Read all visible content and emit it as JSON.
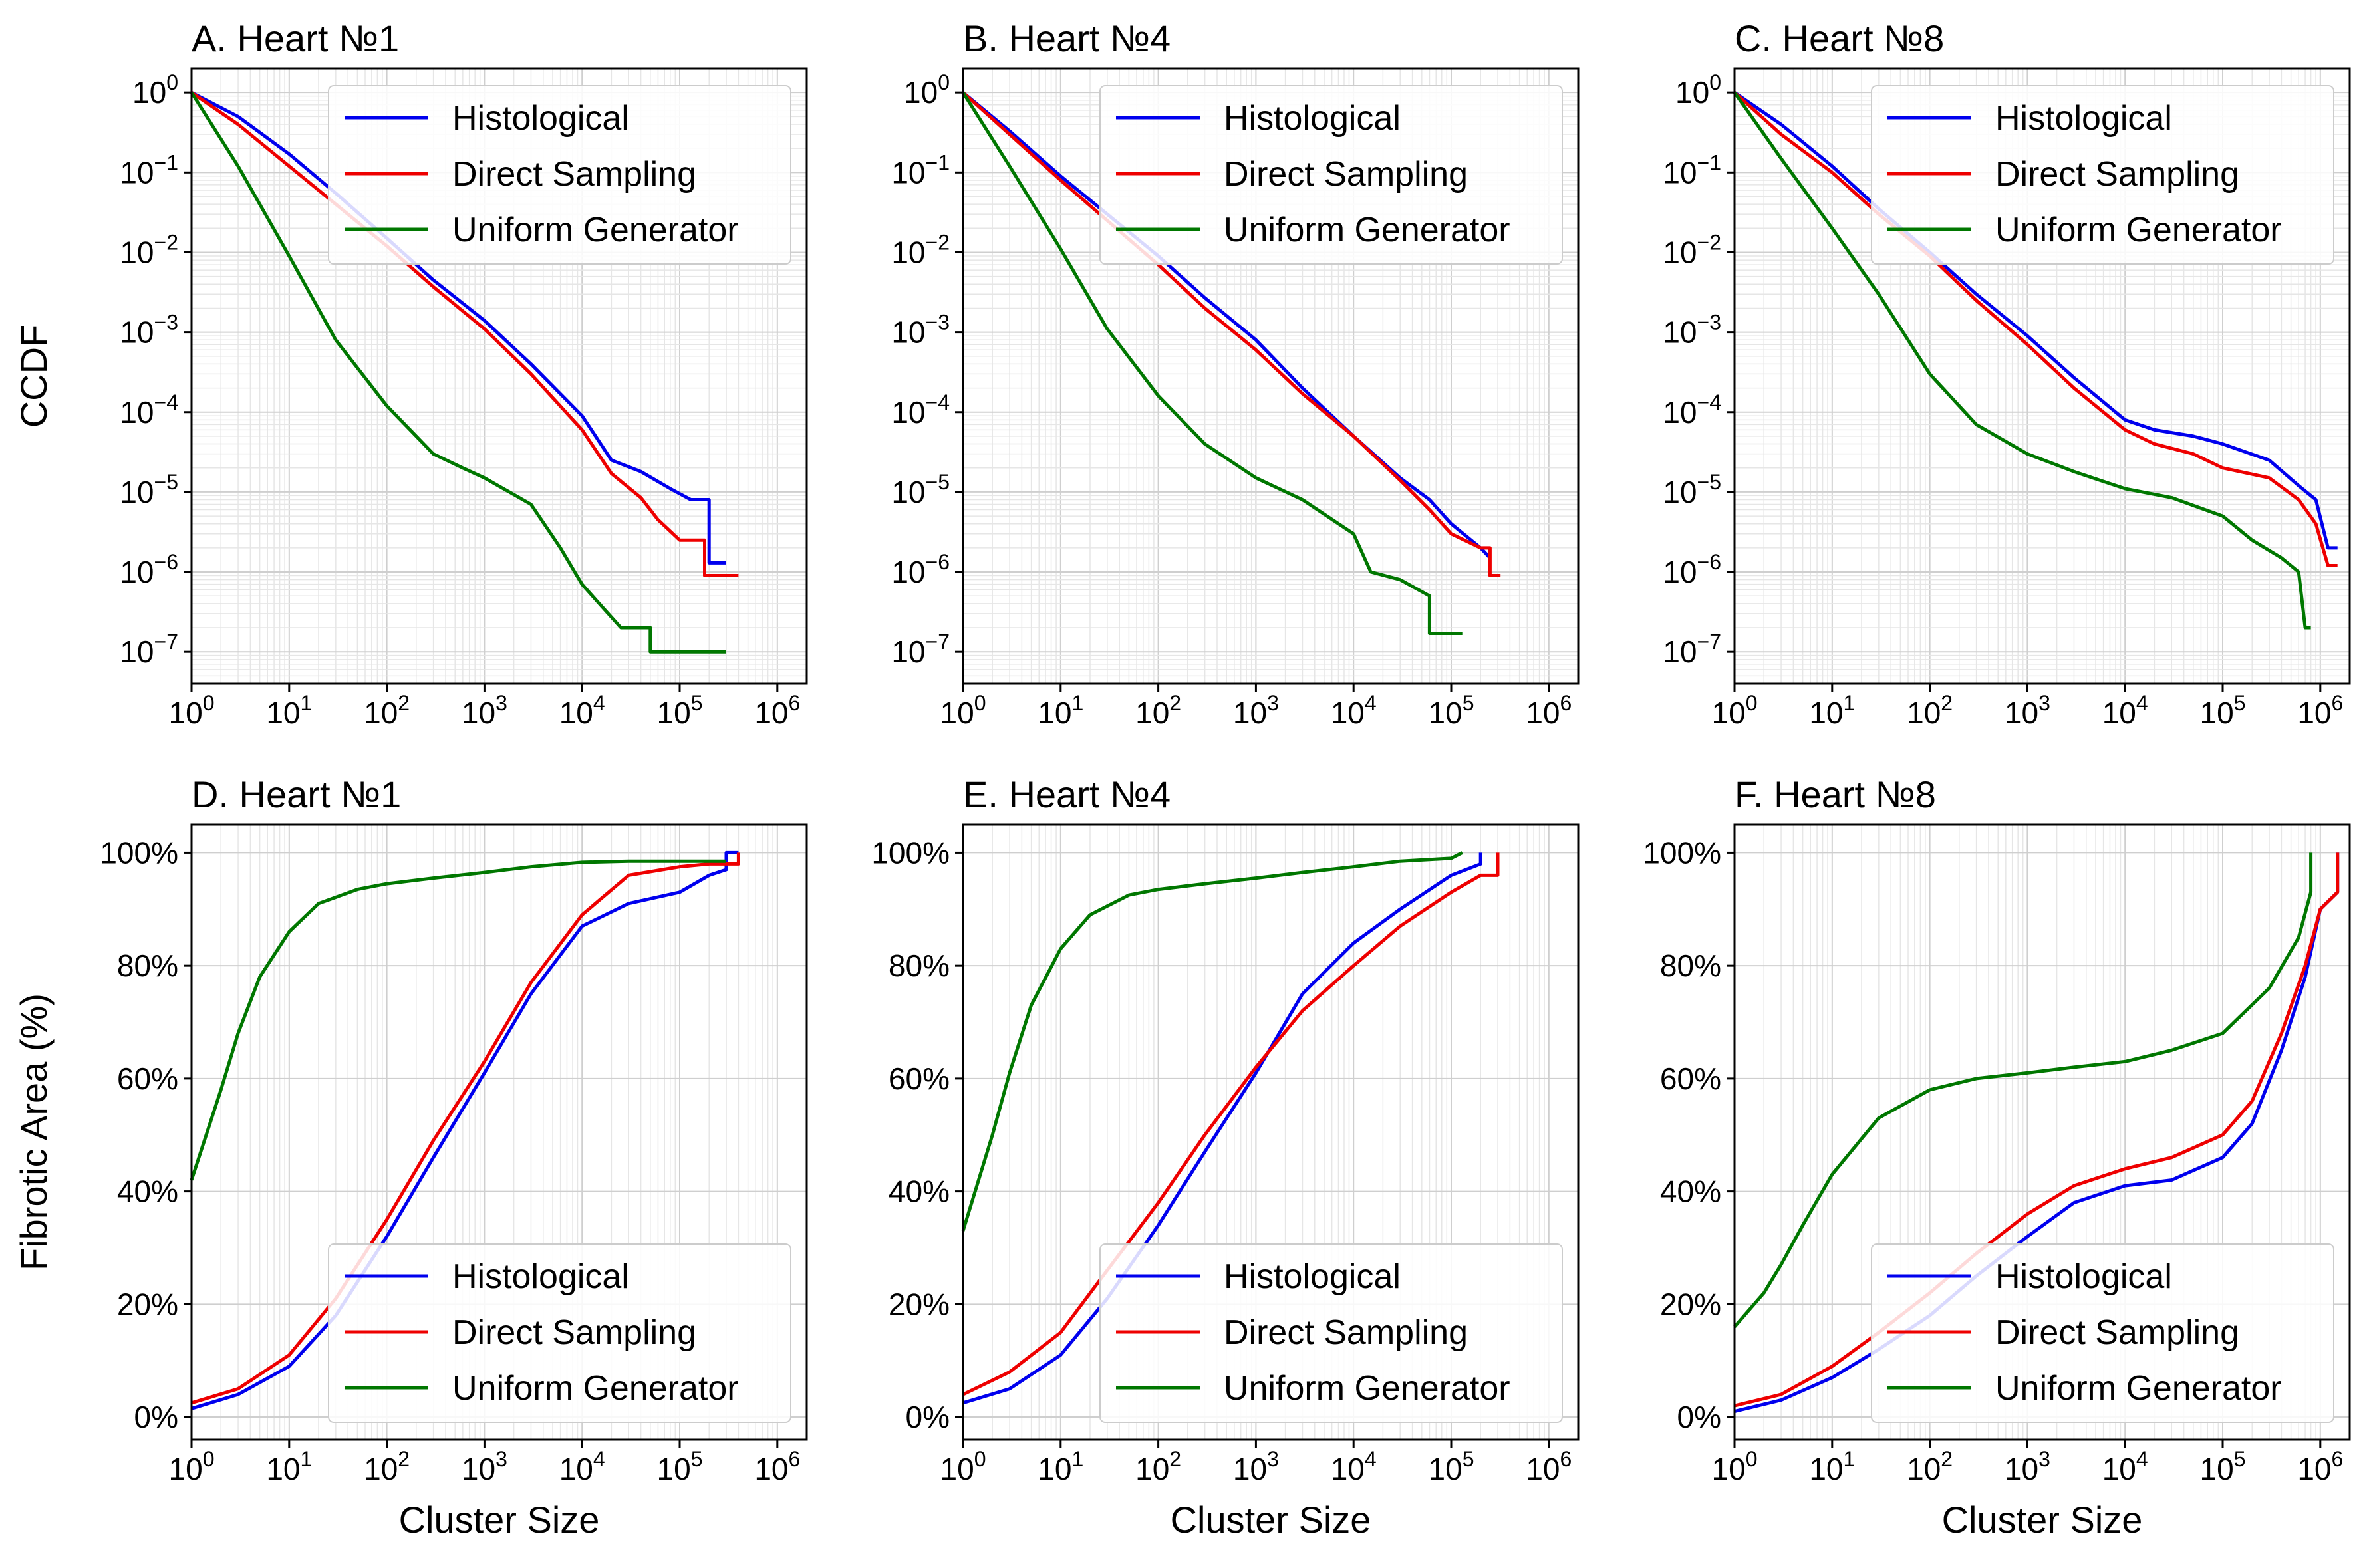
{
  "colors": {
    "Histological": "#0000ee",
    "Direct Sampling": "#ee0000",
    "Uniform Generator": "#007700"
  },
  "chart_data": [
    {
      "type": "line",
      "title": "A. Heart №1",
      "row": "top",
      "col": 0,
      "xlabel": "",
      "ylabel": "CCDF",
      "xscale": "log",
      "yscale": "log",
      "xlim": [
        1,
        2000000
      ],
      "ylim": [
        4e-08,
        2
      ],
      "grid": true,
      "legend": "top-right",
      "xticks": [
        1,
        10,
        100,
        1000,
        10000,
        100000,
        1000000
      ],
      "yticks": [
        1,
        0.1,
        0.01,
        0.001,
        0.0001,
        1e-05,
        1e-06,
        1e-07
      ],
      "series": [
        {
          "name": "Histological",
          "x": [
            1,
            3,
            10,
            30,
            100,
            300,
            1000,
            3000,
            10000,
            20000,
            40000,
            80000,
            130000,
            130000,
            200000,
            200000,
            300000
          ],
          "y": [
            1,
            0.5,
            0.17,
            0.055,
            0.015,
            0.0045,
            0.0014,
            0.0004,
            9e-05,
            2.5e-05,
            1.8e-05,
            1.1e-05,
            8e-06,
            8e-06,
            8e-06,
            1.3e-06,
            1.3e-06
          ]
        },
        {
          "name": "Direct Sampling",
          "x": [
            1,
            3,
            10,
            30,
            100,
            300,
            1000,
            3000,
            10000,
            20000,
            40000,
            60000,
            100000,
            100000,
            180000,
            180000,
            400000
          ],
          "y": [
            1,
            0.4,
            0.12,
            0.04,
            0.012,
            0.0037,
            0.0011,
            0.0003,
            6e-05,
            1.7e-05,
            8.5e-06,
            4.5e-06,
            2.5e-06,
            2.5e-06,
            2.5e-06,
            9e-07,
            9e-07
          ]
        },
        {
          "name": "Uniform Generator",
          "x": [
            1,
            3,
            10,
            30,
            100,
            300,
            600,
            1000,
            3000,
            6000,
            10000,
            15000,
            25000,
            50000,
            50000,
            300000
          ],
          "y": [
            1,
            0.12,
            0.009,
            0.0008,
            0.00012,
            3e-05,
            2e-05,
            1.5e-05,
            7e-06,
            2e-06,
            7e-07,
            4e-07,
            2e-07,
            2e-07,
            1e-07,
            1e-07
          ]
        }
      ]
    },
    {
      "type": "line",
      "title": "B. Heart №4",
      "row": "top",
      "col": 1,
      "xlabel": "",
      "ylabel": "",
      "xscale": "log",
      "yscale": "log",
      "xlim": [
        1,
        2000000
      ],
      "ylim": [
        4e-08,
        2
      ],
      "grid": true,
      "legend": "top-right",
      "xticks": [
        1,
        10,
        100,
        1000,
        10000,
        100000,
        1000000
      ],
      "yticks": [
        1,
        0.1,
        0.01,
        0.001,
        0.0001,
        1e-05,
        1e-06,
        1e-07
      ],
      "series": [
        {
          "name": "Histological",
          "x": [
            1,
            3,
            10,
            30,
            100,
            300,
            1000,
            3000,
            10000,
            30000,
            60000,
            100000,
            200000,
            250000
          ],
          "y": [
            1,
            0.33,
            0.09,
            0.03,
            0.009,
            0.0027,
            0.0008,
            0.0002,
            5e-05,
            1.5e-05,
            8e-06,
            4e-06,
            2e-06,
            1.5e-06
          ]
        },
        {
          "name": "Direct Sampling",
          "x": [
            1,
            3,
            10,
            30,
            100,
            300,
            1000,
            3000,
            10000,
            30000,
            60000,
            100000,
            200000,
            250000,
            250000,
            320000
          ],
          "y": [
            1,
            0.3,
            0.08,
            0.025,
            0.007,
            0.002,
            0.0006,
            0.00017,
            5e-05,
            1.4e-05,
            6e-06,
            3e-06,
            2e-06,
            2e-06,
            9e-07,
            9e-07
          ]
        },
        {
          "name": "Uniform Generator",
          "x": [
            1,
            3,
            10,
            30,
            100,
            300,
            1000,
            3000,
            10000,
            15000,
            30000,
            60000,
            60000,
            130000
          ],
          "y": [
            1,
            0.12,
            0.011,
            0.0011,
            0.00016,
            4e-05,
            1.5e-05,
            8e-06,
            3e-06,
            1e-06,
            8e-07,
            5e-07,
            1.7e-07,
            1.7e-07
          ]
        }
      ]
    },
    {
      "type": "line",
      "title": "C. Heart №8",
      "row": "top",
      "col": 2,
      "xlabel": "",
      "ylabel": "",
      "xscale": "log",
      "yscale": "log",
      "xlim": [
        1,
        2000000
      ],
      "ylim": [
        4e-08,
        2
      ],
      "grid": true,
      "legend": "top-right",
      "xticks": [
        1,
        10,
        100,
        1000,
        10000,
        100000,
        1000000
      ],
      "yticks": [
        1,
        0.1,
        0.01,
        0.001,
        0.0001,
        1e-05,
        1e-06,
        1e-07
      ],
      "series": [
        {
          "name": "Histological",
          "x": [
            1,
            3,
            10,
            30,
            100,
            300,
            1000,
            3000,
            10000,
            20000,
            50000,
            100000,
            300000,
            600000,
            900000,
            1200000,
            1500000
          ],
          "y": [
            1,
            0.4,
            0.12,
            0.035,
            0.01,
            0.003,
            0.0009,
            0.00027,
            8e-05,
            6e-05,
            5e-05,
            4e-05,
            2.5e-05,
            1.2e-05,
            8e-06,
            2e-06,
            2e-06
          ]
        },
        {
          "name": "Direct Sampling",
          "x": [
            1,
            3,
            10,
            30,
            100,
            300,
            1000,
            3000,
            10000,
            20000,
            50000,
            100000,
            300000,
            600000,
            900000,
            1200000,
            1500000
          ],
          "y": [
            1,
            0.3,
            0.1,
            0.03,
            0.009,
            0.0025,
            0.0007,
            0.0002,
            6e-05,
            4e-05,
            3e-05,
            2e-05,
            1.5e-05,
            8e-06,
            4e-06,
            1.2e-06,
            1.2e-06
          ]
        },
        {
          "name": "Uniform Generator",
          "x": [
            1,
            3,
            10,
            30,
            100,
            300,
            1000,
            3000,
            10000,
            30000,
            100000,
            200000,
            400000,
            600000,
            700000,
            800000
          ],
          "y": [
            1,
            0.15,
            0.02,
            0.003,
            0.0003,
            7e-05,
            3e-05,
            1.8e-05,
            1.1e-05,
            8.5e-06,
            5e-06,
            2.5e-06,
            1.5e-06,
            1e-06,
            2e-07,
            2e-07
          ]
        }
      ]
    },
    {
      "type": "line",
      "title": "D. Heart №1",
      "row": "bottom",
      "col": 0,
      "xlabel": "Cluster Size",
      "ylabel": "Fibrotic Area (%)",
      "xscale": "log",
      "yscale": "linear",
      "xlim": [
        1,
        2000000
      ],
      "ylim": [
        -4,
        105
      ],
      "grid": true,
      "legend": "lower-right",
      "xticks": [
        1,
        10,
        100,
        1000,
        10000,
        100000,
        1000000
      ],
      "yticks": [
        0,
        20,
        40,
        60,
        80,
        100
      ],
      "series": [
        {
          "name": "Histological",
          "x": [
            1,
            3,
            10,
            30,
            100,
            300,
            1000,
            3000,
            10000,
            30000,
            100000,
            200000,
            300000,
            300000,
            400000
          ],
          "y": [
            1.5,
            4,
            9,
            18,
            32,
            46,
            61,
            75,
            87,
            91,
            93,
            96,
            97,
            100,
            100
          ]
        },
        {
          "name": "Direct Sampling",
          "x": [
            1,
            3,
            10,
            30,
            100,
            300,
            1000,
            3000,
            10000,
            30000,
            100000,
            200000,
            400000,
            400000
          ],
          "y": [
            2.5,
            5,
            11,
            21,
            35,
            49,
            63,
            77,
            89,
            96,
            97.5,
            98,
            98,
            100
          ]
        },
        {
          "name": "Uniform Generator",
          "x": [
            1,
            2,
            3,
            5,
            10,
            20,
            50,
            100,
            300,
            1000,
            3000,
            10000,
            30000,
            100000,
            300000
          ],
          "y": [
            42,
            58,
            68,
            78,
            86,
            91,
            93.5,
            94.5,
            95.5,
            96.5,
            97.5,
            98.3,
            98.5,
            98.5,
            98.5
          ]
        }
      ]
    },
    {
      "type": "line",
      "title": "E. Heart №4",
      "row": "bottom",
      "col": 1,
      "xlabel": "Cluster Size",
      "ylabel": "",
      "xscale": "log",
      "yscale": "linear",
      "xlim": [
        1,
        2000000
      ],
      "ylim": [
        -4,
        105
      ],
      "grid": true,
      "legend": "lower-right",
      "xticks": [
        1,
        10,
        100,
        1000,
        10000,
        100000,
        1000000
      ],
      "yticks": [
        0,
        20,
        40,
        60,
        80,
        100
      ],
      "series": [
        {
          "name": "Histological",
          "x": [
            1,
            3,
            10,
            30,
            100,
            300,
            1000,
            3000,
            10000,
            30000,
            100000,
            200000,
            200000
          ],
          "y": [
            2.5,
            5,
            11,
            21,
            34,
            47,
            61,
            75,
            84,
            90,
            96,
            98,
            100
          ]
        },
        {
          "name": "Direct Sampling",
          "x": [
            1,
            3,
            10,
            30,
            100,
            300,
            1000,
            3000,
            10000,
            30000,
            100000,
            200000,
            300000,
            300000
          ],
          "y": [
            4,
            8,
            15,
            26,
            38,
            50,
            62,
            72,
            80,
            87,
            93,
            96,
            96,
            100
          ]
        },
        {
          "name": "Uniform Generator",
          "x": [
            1,
            2,
            3,
            5,
            10,
            20,
            50,
            100,
            300,
            1000,
            3000,
            10000,
            30000,
            100000,
            130000
          ],
          "y": [
            33,
            50,
            61,
            73,
            83,
            89,
            92.5,
            93.5,
            94.5,
            95.5,
            96.5,
            97.5,
            98.5,
            99,
            100
          ]
        }
      ]
    },
    {
      "type": "line",
      "title": "F. Heart №8",
      "row": "bottom",
      "col": 2,
      "xlabel": "Cluster Size",
      "ylabel": "",
      "xscale": "log",
      "yscale": "linear",
      "xlim": [
        1,
        2000000
      ],
      "ylim": [
        -4,
        105
      ],
      "grid": true,
      "legend": "lower-right",
      "xticks": [
        1,
        10,
        100,
        1000,
        10000,
        100000,
        1000000
      ],
      "yticks": [
        0,
        20,
        40,
        60,
        80,
        100
      ],
      "series": [
        {
          "name": "Histological",
          "x": [
            1,
            3,
            10,
            30,
            100,
            300,
            1000,
            3000,
            10000,
            30000,
            100000,
            200000,
            400000,
            700000,
            1000000,
            1500000,
            1500000
          ],
          "y": [
            1,
            3,
            7,
            12,
            18,
            25,
            32,
            38,
            41,
            42,
            46,
            52,
            65,
            78,
            90,
            93,
            100
          ]
        },
        {
          "name": "Direct Sampling",
          "x": [
            1,
            3,
            10,
            30,
            100,
            300,
            1000,
            3000,
            10000,
            30000,
            100000,
            200000,
            400000,
            700000,
            1000000,
            1500000,
            1500000
          ],
          "y": [
            2,
            4,
            9,
            15,
            22,
            29,
            36,
            41,
            44,
            46,
            50,
            56,
            68,
            80,
            90,
            93,
            100
          ]
        },
        {
          "name": "Uniform Generator",
          "x": [
            1,
            2,
            3,
            5,
            10,
            30,
            100,
            300,
            1000,
            3000,
            10000,
            30000,
            100000,
            300000,
            600000,
            800000,
            800000
          ],
          "y": [
            16,
            22,
            27,
            34,
            43,
            53,
            58,
            60,
            61,
            62,
            63,
            65,
            68,
            76,
            85,
            93,
            100
          ]
        }
      ]
    }
  ]
}
